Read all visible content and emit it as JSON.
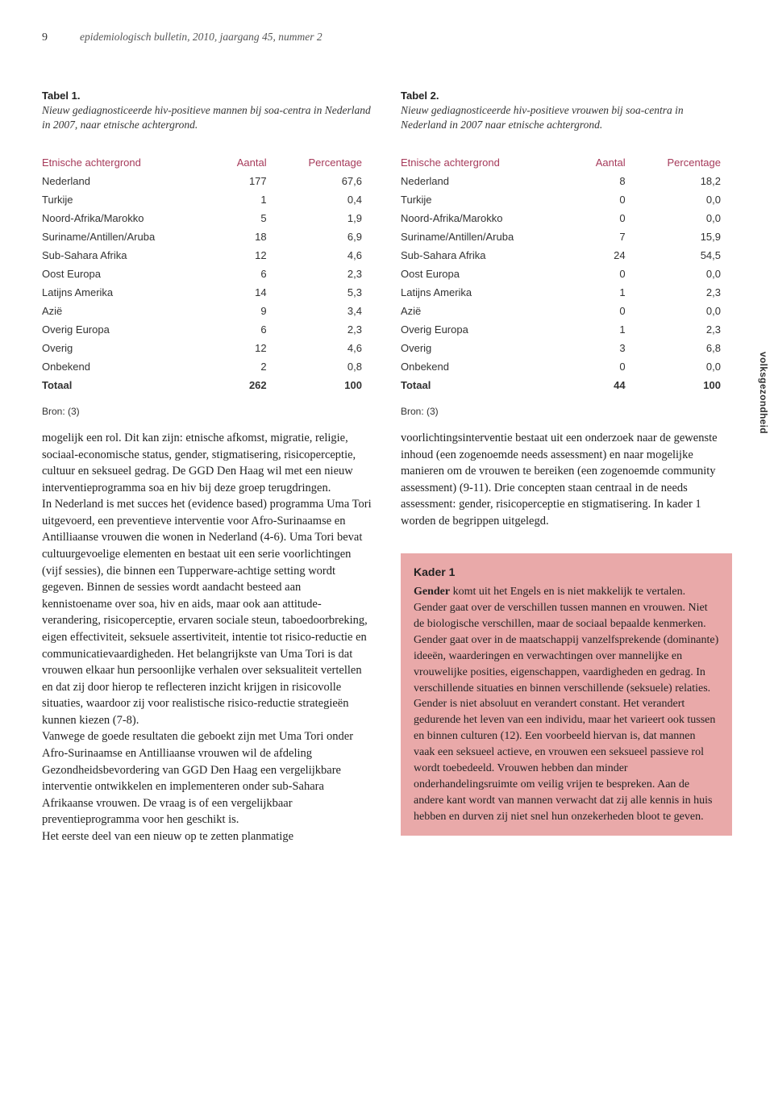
{
  "header": {
    "page_number": "9",
    "journal": "epidemiologisch bulletin, 2010, jaargang 45, nummer 2"
  },
  "table1": {
    "label": "Tabel 1.",
    "caption": "Nieuw gediagnosticeerde hiv-positieve mannen bij soa-centra in Nederland in 2007, naar etnische achtergrond.",
    "head_col1": "Etnische achtergrond",
    "head_col2": "Aantal",
    "head_col3": "Percentage",
    "rows": [
      {
        "c1": "Nederland",
        "c2": "177",
        "c3": "67,6"
      },
      {
        "c1": "Turkije",
        "c2": "1",
        "c3": "0,4"
      },
      {
        "c1": "Noord-Afrika/Marokko",
        "c2": "5",
        "c3": "1,9"
      },
      {
        "c1": "Suriname/Antillen/Aruba",
        "c2": "18",
        "c3": "6,9"
      },
      {
        "c1": "Sub-Sahara Afrika",
        "c2": "12",
        "c3": "4,6"
      },
      {
        "c1": "Oost Europa",
        "c2": "6",
        "c3": "2,3"
      },
      {
        "c1": "Latijns Amerika",
        "c2": "14",
        "c3": "5,3"
      },
      {
        "c1": "Azië",
        "c2": "9",
        "c3": "3,4"
      },
      {
        "c1": "Overig Europa",
        "c2": "6",
        "c3": "2,3"
      },
      {
        "c1": "Overig",
        "c2": "12",
        "c3": "4,6"
      },
      {
        "c1": "Onbekend",
        "c2": "2",
        "c3": "0,8"
      }
    ],
    "total": {
      "c1": "Totaal",
      "c2": "262",
      "c3": "100"
    },
    "source": "Bron: (3)"
  },
  "table2": {
    "label": "Tabel 2.",
    "caption": "Nieuw gediagnosticeerde hiv-positieve vrouwen bij soa-centra in Nederland in 2007 naar etnische achtergrond.",
    "head_col1": "Etnische achtergrond",
    "head_col2": "Aantal",
    "head_col3": "Percentage",
    "rows": [
      {
        "c1": "Nederland",
        "c2": "8",
        "c3": "18,2"
      },
      {
        "c1": "Turkije",
        "c2": "0",
        "c3": "0,0"
      },
      {
        "c1": "Noord-Afrika/Marokko",
        "c2": "0",
        "c3": "0,0"
      },
      {
        "c1": "Suriname/Antillen/Aruba",
        "c2": "7",
        "c3": "15,9"
      },
      {
        "c1": "Sub-Sahara Afrika",
        "c2": "24",
        "c3": "54,5"
      },
      {
        "c1": "Oost Europa",
        "c2": "0",
        "c3": "0,0"
      },
      {
        "c1": "Latijns Amerika",
        "c2": "1",
        "c3": "2,3"
      },
      {
        "c1": "Azië",
        "c2": "0",
        "c3": "0,0"
      },
      {
        "c1": "Overig Europa",
        "c2": "1",
        "c3": "2,3"
      },
      {
        "c1": "Overig",
        "c2": "3",
        "c3": "6,8"
      },
      {
        "c1": "Onbekend",
        "c2": "0",
        "c3": "0,0"
      }
    ],
    "total": {
      "c1": "Totaal",
      "c2": "44",
      "c3": "100"
    },
    "source": "Bron: (3)"
  },
  "body_left": "mogelijk een rol. Dit kan zijn: etnische afkomst, migratie, religie, sociaal-economische status, gender, stigmatisering, risicoperceptie, cultuur en seksueel gedrag. De GGD Den Haag wil met een nieuw interventieprogramma soa en hiv bij deze groep terugdringen.\nIn Nederland is met succes het (evidence based) programma Uma Tori uitgevoerd, een preventieve interventie voor Afro-Surinaamse en Antilliaanse vrouwen die wonen in Nederland (4-6). Uma Tori bevat cultuurgevoelige elementen en bestaat uit een serie voorlichtingen (vijf sessies), die binnen een Tupperware-achtige setting wordt gegeven. Binnen de sessies wordt aandacht besteed aan kennistoename over soa, hiv en aids, maar ook aan attitude-verandering, risicoperceptie, ervaren sociale steun, taboedoorbreking, eigen effectiviteit, seksuele assertiviteit, intentie tot risico-reductie en communicatievaardigheden. Het belangrijkste van Uma Tori is dat vrouwen elkaar hun persoonlijke verhalen over seksualiteit vertellen en dat zij door hierop te reflecteren inzicht krijgen in risicovolle situaties, waardoor zij voor realistische risico-reductie strategieën kunnen kiezen (7-8).\nVanwege de goede resultaten die geboekt zijn met Uma Tori onder Afro-Surinaamse en Antilliaanse vrouwen wil de afdeling Gezondheidsbevordering van GGD Den Haag een vergelijkbare interventie ontwikkelen en implementeren onder sub-Sahara Afrikaanse vrouwen. De vraag is of een vergelijkbaar preventieprogramma voor hen geschikt is.\nHet eerste deel van een nieuw op te zetten planmatige",
  "body_right": "voorlichtingsinterventie bestaat uit een onderzoek naar de gewenste inhoud (een zogenoemde needs assessment) en naar mogelijke manieren om de vrouwen te bereiken (een zogenoemde community assessment) (9-11). Drie concepten staan centraal in de needs assessment: gender, risicoperceptie en stigmatisering. In kader 1 worden de begrippen uitgelegd.",
  "kader": {
    "title": "Kader 1",
    "text": "Gender komt uit het Engels en is niet makkelijk te vertalen. Gender gaat over de verschillen tussen mannen en vrouwen. Niet de biologische verschillen, maar de sociaal bepaalde kenmerken. Gender gaat over in de maatschappij vanzelfsprekende (dominante) ideeën, waarderingen en verwachtingen over mannelijke en vrouwelijke posities, eigenschappen, vaardigheden en gedrag. In verschillende situaties en binnen verschillende (seksuele) relaties. Gender is niet absoluut en verandert constant. Het verandert gedurende het leven van een individu, maar het varieert ook tussen en binnen culturen (12). Een voorbeeld hiervan is, dat mannen vaak een seksueel actieve, en vrouwen een seksueel passieve rol wordt toebedeeld. Vrouwen hebben dan minder onderhandelingsruimte om veilig vrijen te bespreken. Aan de andere kant wordt van mannen verwacht dat zij alle kennis in huis hebben en durven zij niet snel hun onzekerheden bloot te geven."
  },
  "sidetab": "volksgezondheid"
}
